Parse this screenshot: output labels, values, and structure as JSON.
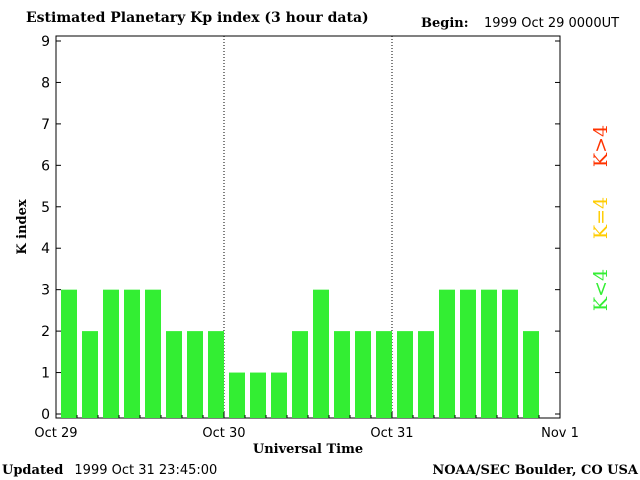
{
  "header": {
    "title": "Estimated Planetary Kp index (3 hour data)",
    "begin_label": "Begin:",
    "begin_value": "1999 Oct 29 0000UT"
  },
  "footer": {
    "updated_label": "Updated",
    "updated_value": "1999 Oct 31 23:45:00",
    "source": "NOAA/SEC Boulder, CO USA"
  },
  "legend": [
    {
      "label": "K<4",
      "color": "#33ee33"
    },
    {
      "label": "K=4",
      "color": "#ffcc00"
    },
    {
      "label": "K>4",
      "color": "#ff3300"
    }
  ],
  "chart_data": {
    "type": "bar",
    "title": "Estimated Planetary Kp index (3 hour data)",
    "xlabel": "Universal Time",
    "ylabel": "K index",
    "ylim": [
      0,
      9
    ],
    "yticks": [
      0,
      1,
      2,
      3,
      4,
      5,
      6,
      7,
      8,
      9
    ],
    "xticks": [
      "Oct 29",
      "Oct 30",
      "Oct 31",
      "Nov 1"
    ],
    "bars_per_day": 8,
    "values": [
      3,
      2,
      3,
      3,
      3,
      2,
      2,
      2,
      1,
      1,
      1,
      2,
      3,
      2,
      2,
      2,
      2,
      2,
      3,
      3,
      3,
      3,
      2
    ],
    "bar_color": "#33ee33"
  }
}
